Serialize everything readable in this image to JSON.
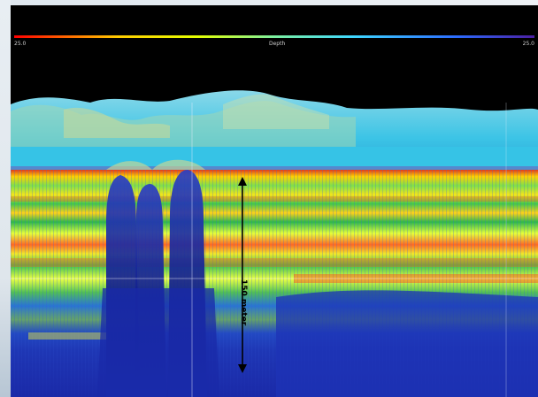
{
  "colorbar": {
    "min_label": "25.0",
    "mid_label": "Depth",
    "max_label": "25.0",
    "stops": [
      "#ff0000",
      "#ffcc00",
      "#e5ff00",
      "#7cf0a0",
      "#3fd8ff",
      "#2c6cff",
      "#4c1fa3"
    ]
  },
  "scale_bar": {
    "label": "150 meter"
  },
  "colors": {
    "background": "#000000",
    "seabed_cyan": "#35c8e6",
    "echo_red": "#ff3a1a",
    "echo_yellow": "#ffe600",
    "echo_green": "#5fd84a",
    "echo_blue": "#1a2fbf"
  }
}
